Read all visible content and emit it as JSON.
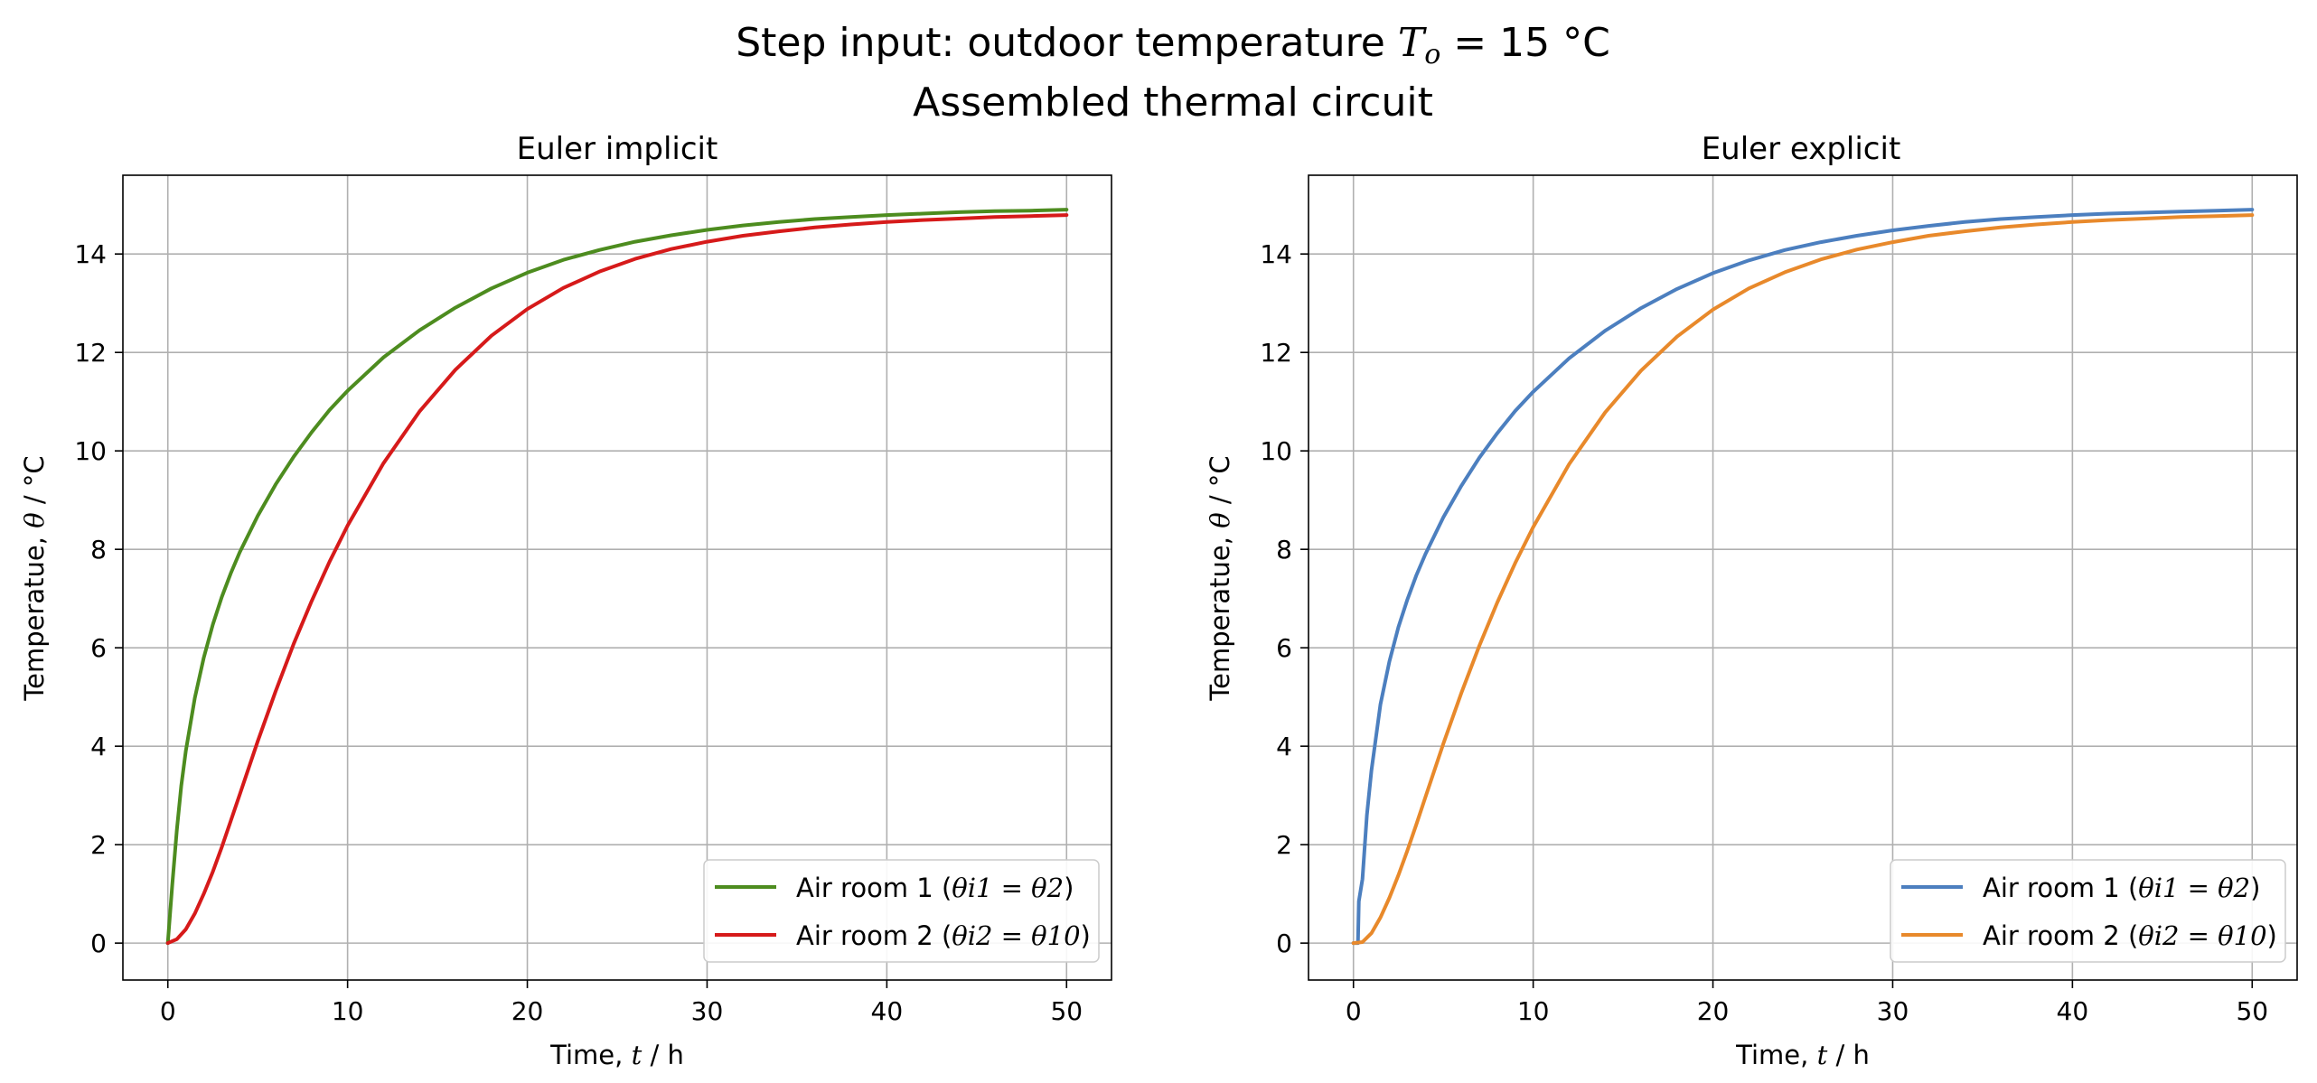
{
  "figure": {
    "suptitle_line1_prefix": "Step input: outdoor temperature ",
    "suptitle_line1_math_T": "T",
    "suptitle_line1_math_sub": "o",
    "suptitle_line1_suffix": " = 15 °C",
    "suptitle_line2": "Assembled thermal circuit"
  },
  "chart_data": [
    {
      "type": "line",
      "title": "Euler implicit",
      "xlabel_prefix": "Time, ",
      "xlabel_var": "t",
      "xlabel_unit": " / h",
      "ylabel_prefix": "Temperatue, ",
      "ylabel_var": "θ",
      "ylabel_unit": " / °C",
      "xlim": [
        -2.5,
        52.5
      ],
      "ylim": [
        -0.75,
        15.6
      ],
      "xticks": [
        0,
        10,
        20,
        30,
        40,
        50
      ],
      "yticks": [
        0,
        2,
        4,
        6,
        8,
        10,
        12,
        14
      ],
      "grid": true,
      "legend_position": "lower-right",
      "series": [
        {
          "name_prefix": "Air room 1 (",
          "name_math": "θi1 = θ2",
          "name_suffix": ")",
          "color": "#4d8c1f",
          "x": [
            0,
            0.25,
            0.5,
            0.75,
            1,
            1.5,
            2,
            2.5,
            3,
            3.5,
            4,
            5,
            6,
            7,
            8,
            9,
            10,
            12,
            14,
            16,
            18,
            20,
            22,
            24,
            26,
            28,
            30,
            32,
            34,
            36,
            38,
            40,
            42,
            44,
            46,
            48,
            50
          ],
          "y": [
            0,
            1.2,
            2.3,
            3.2,
            3.9,
            4.98,
            5.8,
            6.47,
            7.03,
            7.51,
            7.94,
            8.68,
            9.32,
            9.88,
            10.38,
            10.83,
            11.22,
            11.9,
            12.45,
            12.91,
            13.3,
            13.62,
            13.88,
            14.08,
            14.25,
            14.38,
            14.49,
            14.58,
            14.65,
            14.71,
            14.75,
            14.79,
            14.82,
            14.85,
            14.87,
            14.88,
            14.9
          ]
        },
        {
          "name_prefix": "Air room 2 (",
          "name_math": "θi2 = θ10",
          "name_suffix": ")",
          "color": "#d61a1a",
          "x": [
            0,
            0.5,
            1,
            1.5,
            2,
            2.5,
            3,
            3.5,
            4,
            5,
            6,
            7,
            8,
            9,
            10,
            12,
            14,
            16,
            18,
            20,
            22,
            24,
            26,
            28,
            30,
            32,
            34,
            36,
            38,
            40,
            42,
            44,
            46,
            48,
            50
          ],
          "y": [
            0,
            0.08,
            0.28,
            0.6,
            1.0,
            1.45,
            1.95,
            2.48,
            3.02,
            4.1,
            5.12,
            6.08,
            6.95,
            7.75,
            8.48,
            9.75,
            10.8,
            11.65,
            12.34,
            12.88,
            13.31,
            13.64,
            13.9,
            14.1,
            14.25,
            14.37,
            14.46,
            14.54,
            14.6,
            14.65,
            14.69,
            14.72,
            14.75,
            14.77,
            14.79
          ]
        }
      ]
    },
    {
      "type": "line",
      "title": "Euler explicit",
      "xlabel_prefix": "Time, ",
      "xlabel_var": "t",
      "xlabel_unit": " / h",
      "ylabel_prefix": "Temperatue, ",
      "ylabel_var": "θ",
      "ylabel_unit": " / °C",
      "xlim": [
        -2.5,
        52.5
      ],
      "ylim": [
        -0.75,
        15.6
      ],
      "xticks": [
        0,
        10,
        20,
        30,
        40,
        50
      ],
      "yticks": [
        0,
        2,
        4,
        6,
        8,
        10,
        12,
        14
      ],
      "grid": true,
      "legend_position": "lower-right",
      "series": [
        {
          "name_prefix": "Air room 1 (",
          "name_math": "θi1 = θ2",
          "name_suffix": ")",
          "color": "#4c7fbf",
          "x": [
            0,
            0.25,
            0.3,
            0.5,
            0.75,
            1,
            1.5,
            2,
            2.5,
            3,
            3.5,
            4,
            5,
            6,
            7,
            8,
            9,
            10,
            12,
            14,
            16,
            18,
            20,
            22,
            24,
            26,
            28,
            30,
            32,
            34,
            36,
            38,
            40,
            42,
            44,
            46,
            48,
            50
          ],
          "y": [
            0,
            0.0,
            0.85,
            1.3,
            2.6,
            3.5,
            4.85,
            5.72,
            6.42,
            6.98,
            7.47,
            7.9,
            8.65,
            9.29,
            9.86,
            10.36,
            10.81,
            11.2,
            11.88,
            12.44,
            12.9,
            13.29,
            13.61,
            13.87,
            14.08,
            14.24,
            14.37,
            14.48,
            14.57,
            14.65,
            14.71,
            14.75,
            14.79,
            14.82,
            14.84,
            14.86,
            14.88,
            14.9
          ]
        },
        {
          "name_prefix": "Air room 2 (",
          "name_math": "θi2 = θ10",
          "name_suffix": ")",
          "color": "#e8892b",
          "x": [
            0,
            0.5,
            1,
            1.5,
            2,
            2.5,
            3,
            3.5,
            4,
            5,
            6,
            7,
            8,
            9,
            10,
            12,
            14,
            16,
            18,
            20,
            22,
            24,
            26,
            28,
            30,
            32,
            34,
            36,
            38,
            40,
            42,
            44,
            46,
            48,
            50
          ],
          "y": [
            0,
            0.02,
            0.2,
            0.52,
            0.92,
            1.38,
            1.88,
            2.41,
            2.96,
            4.05,
            5.08,
            6.04,
            6.92,
            7.72,
            8.45,
            9.73,
            10.78,
            11.63,
            12.32,
            12.87,
            13.3,
            13.63,
            13.89,
            14.09,
            14.24,
            14.37,
            14.46,
            14.54,
            14.6,
            14.65,
            14.69,
            14.72,
            14.75,
            14.77,
            14.79
          ]
        }
      ]
    }
  ]
}
